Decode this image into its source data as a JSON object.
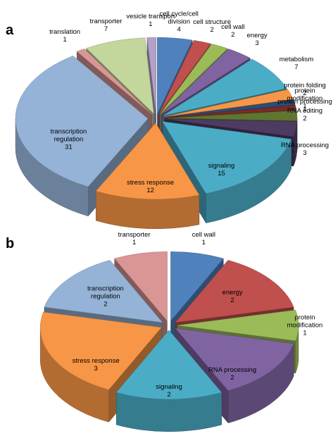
{
  "chart_data": [
    {
      "type": "pie",
      "title": "a",
      "categories": [
        "cell cycle/cell division",
        "cell structure",
        "cell wall",
        "energy",
        "metabolism",
        "protein folding",
        "protein modification",
        "protein processing",
        "RNA editing",
        "RNA processing",
        "signaling",
        "stress response",
        "transcription regulation",
        "translation",
        "transporter",
        "vesicle transport"
      ],
      "values": [
        4,
        2,
        2,
        3,
        7,
        2,
        1,
        1,
        2,
        3,
        15,
        12,
        31,
        1,
        7,
        1
      ],
      "colors": [
        "#4f81bd",
        "#c0504d",
        "#9bbb59",
        "#8064a2",
        "#4bacc6",
        "#f79646",
        "#2c4d75",
        "#772c2a",
        "#5f7530",
        "#4d3b62",
        "#4bacc6",
        "#f79646",
        "#95b3d7",
        "#d99694",
        "#c3d69b",
        "#b3a2c7"
      ]
    },
    {
      "type": "pie",
      "title": "b",
      "categories": [
        "cell wall",
        "energy",
        "protein modification",
        "RNA processing",
        "signaling",
        "stress response",
        "transcription regulation",
        "transporter"
      ],
      "values": [
        1,
        2,
        1,
        2,
        2,
        3,
        2,
        1
      ],
      "colors": [
        "#4f81bd",
        "#c0504d",
        "#9bbb59",
        "#8064a2",
        "#4bacc6",
        "#f79646",
        "#95b3d7",
        "#d99694"
      ]
    }
  ]
}
